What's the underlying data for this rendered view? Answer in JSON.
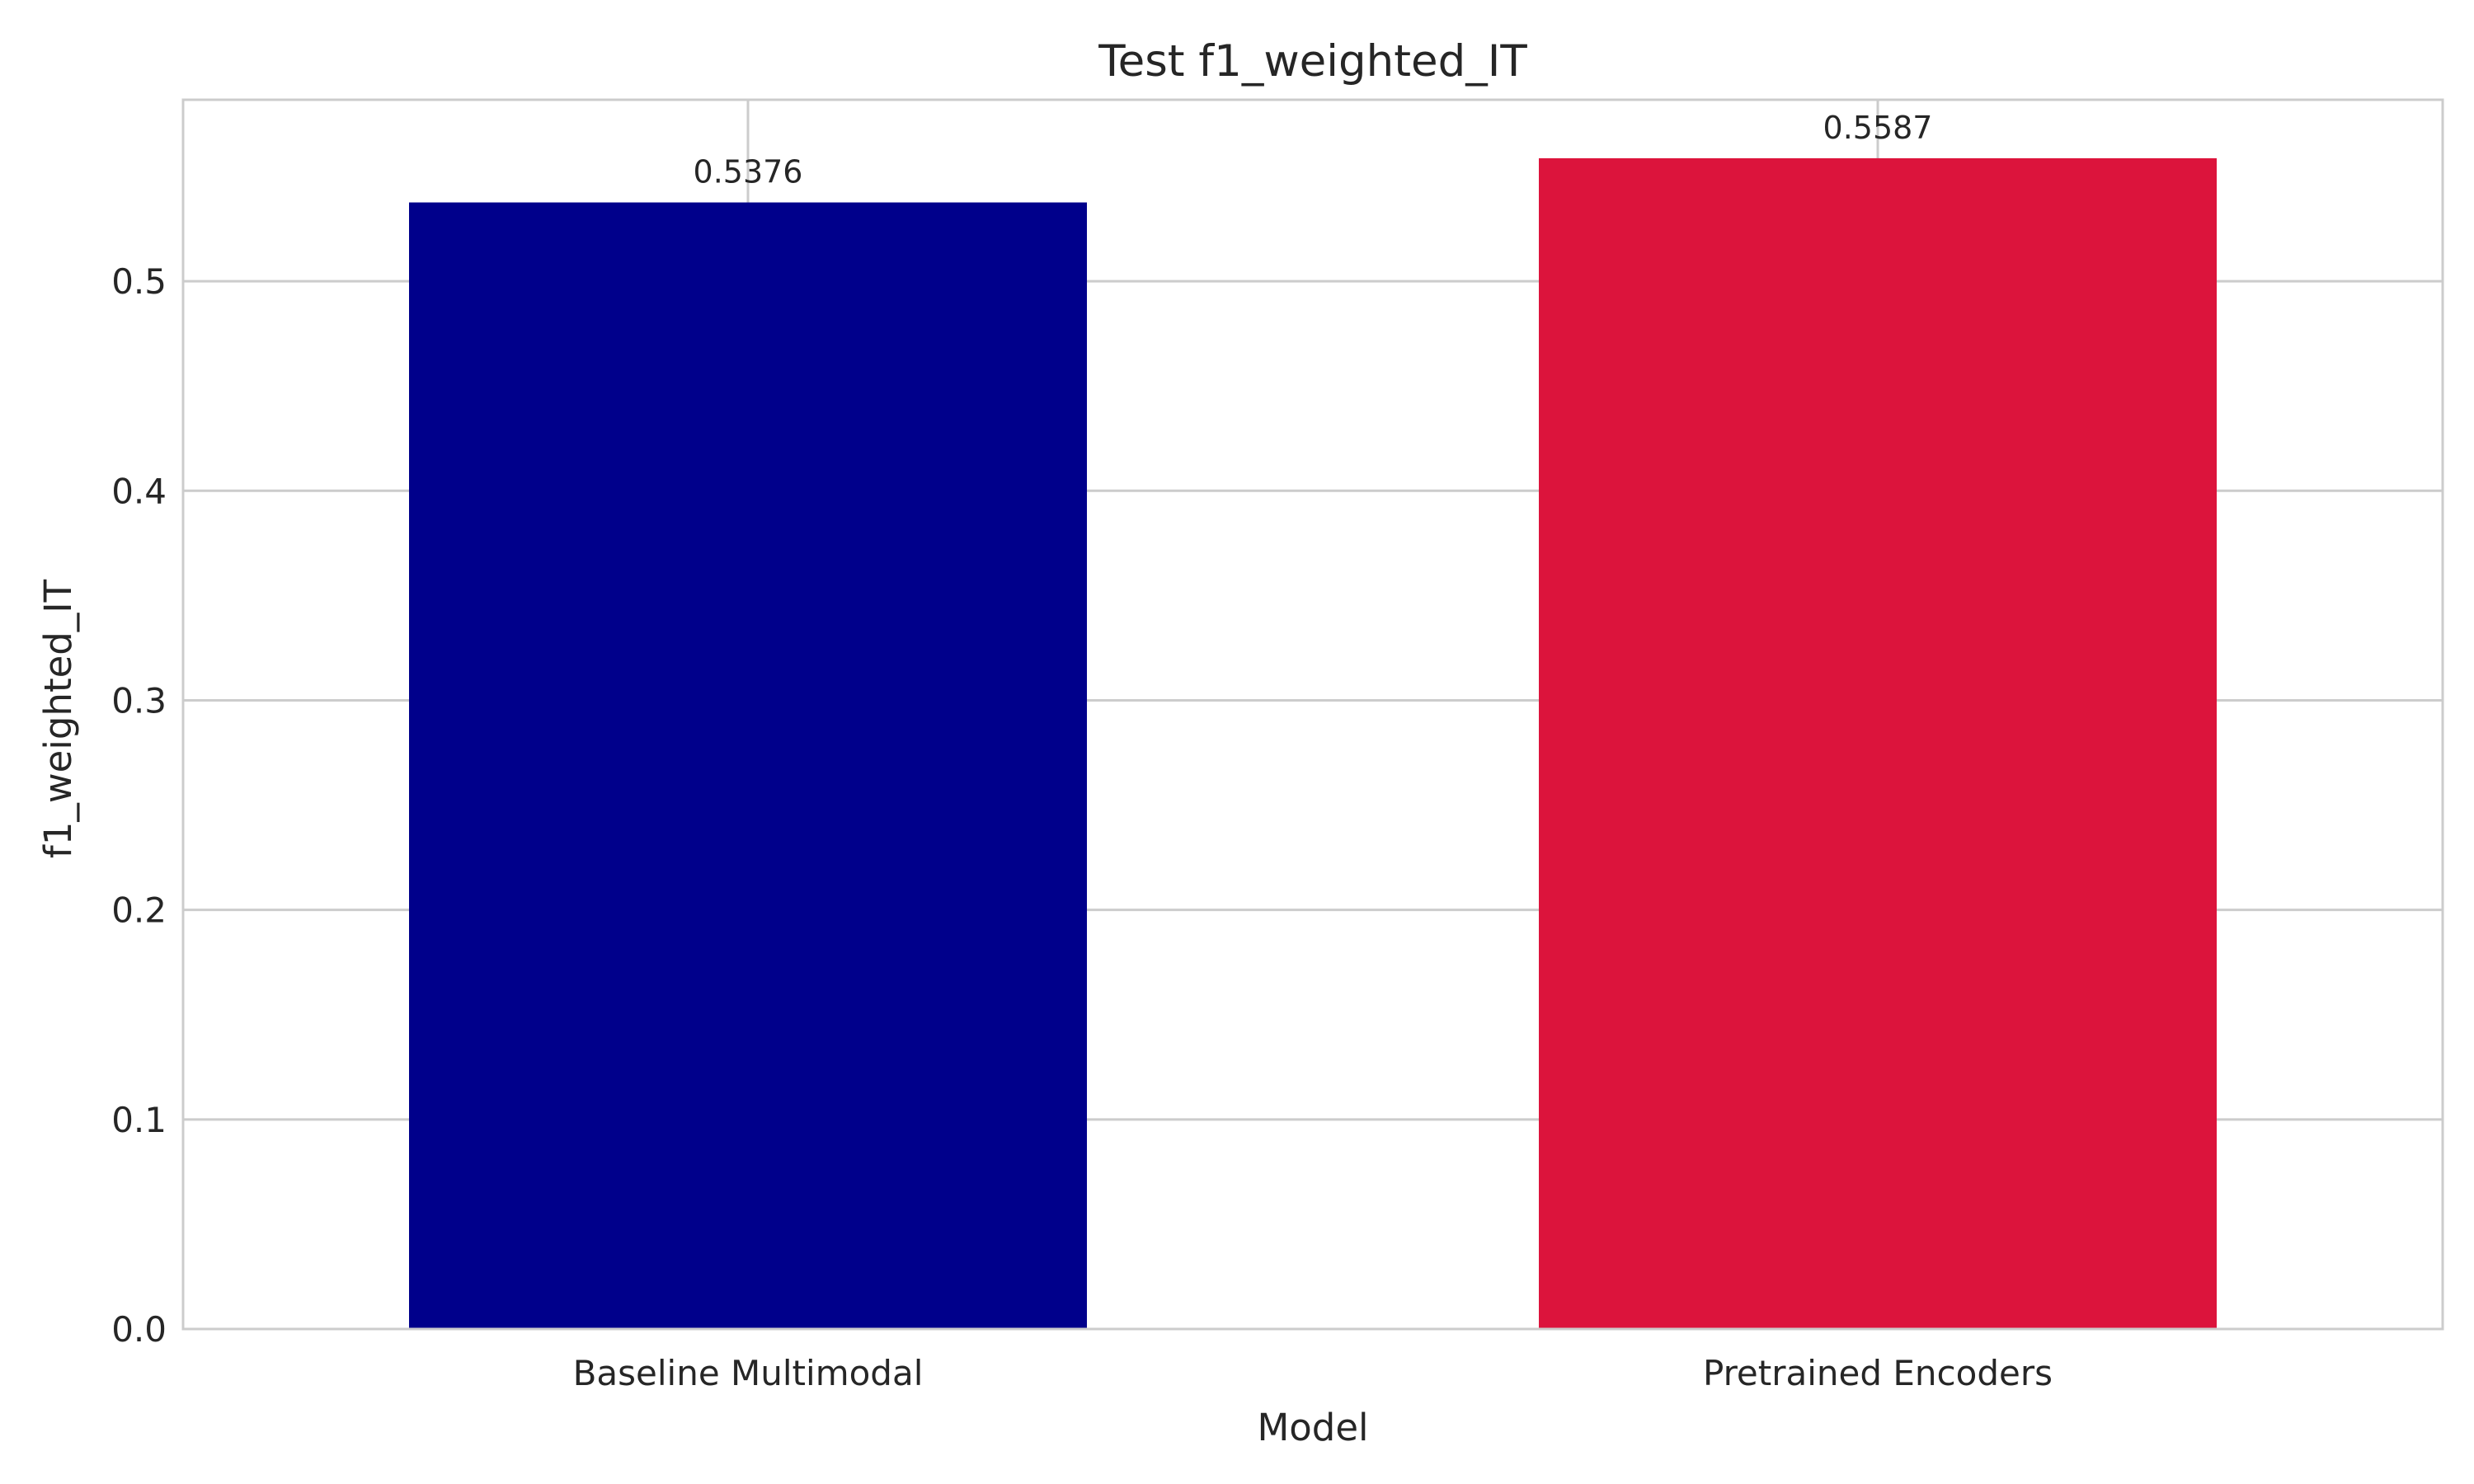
{
  "chart_data": {
    "type": "bar",
    "title": "Test f1_weighted_IT",
    "xlabel": "Model",
    "ylabel": "f1_weighted_IT",
    "categories": [
      "Baseline Multimodal",
      "Pretrained Encoders"
    ],
    "values": [
      0.5376,
      0.5587
    ],
    "value_labels": [
      "0.5376",
      "0.5587"
    ],
    "bar_colors": [
      "#00008b",
      "#dc143c"
    ],
    "ylim": [
      0,
      0.5866
    ],
    "yticks": [
      0.0,
      0.1,
      0.2,
      0.3,
      0.4,
      0.5
    ],
    "ytick_labels": [
      "0.0",
      "0.1",
      "0.2",
      "0.3",
      "0.4",
      "0.5"
    ],
    "grid": true,
    "legend": "none"
  },
  "colors": {
    "grid": "#cccccc",
    "spine": "#cccccc",
    "text": "#262626",
    "background": "#ffffff"
  }
}
